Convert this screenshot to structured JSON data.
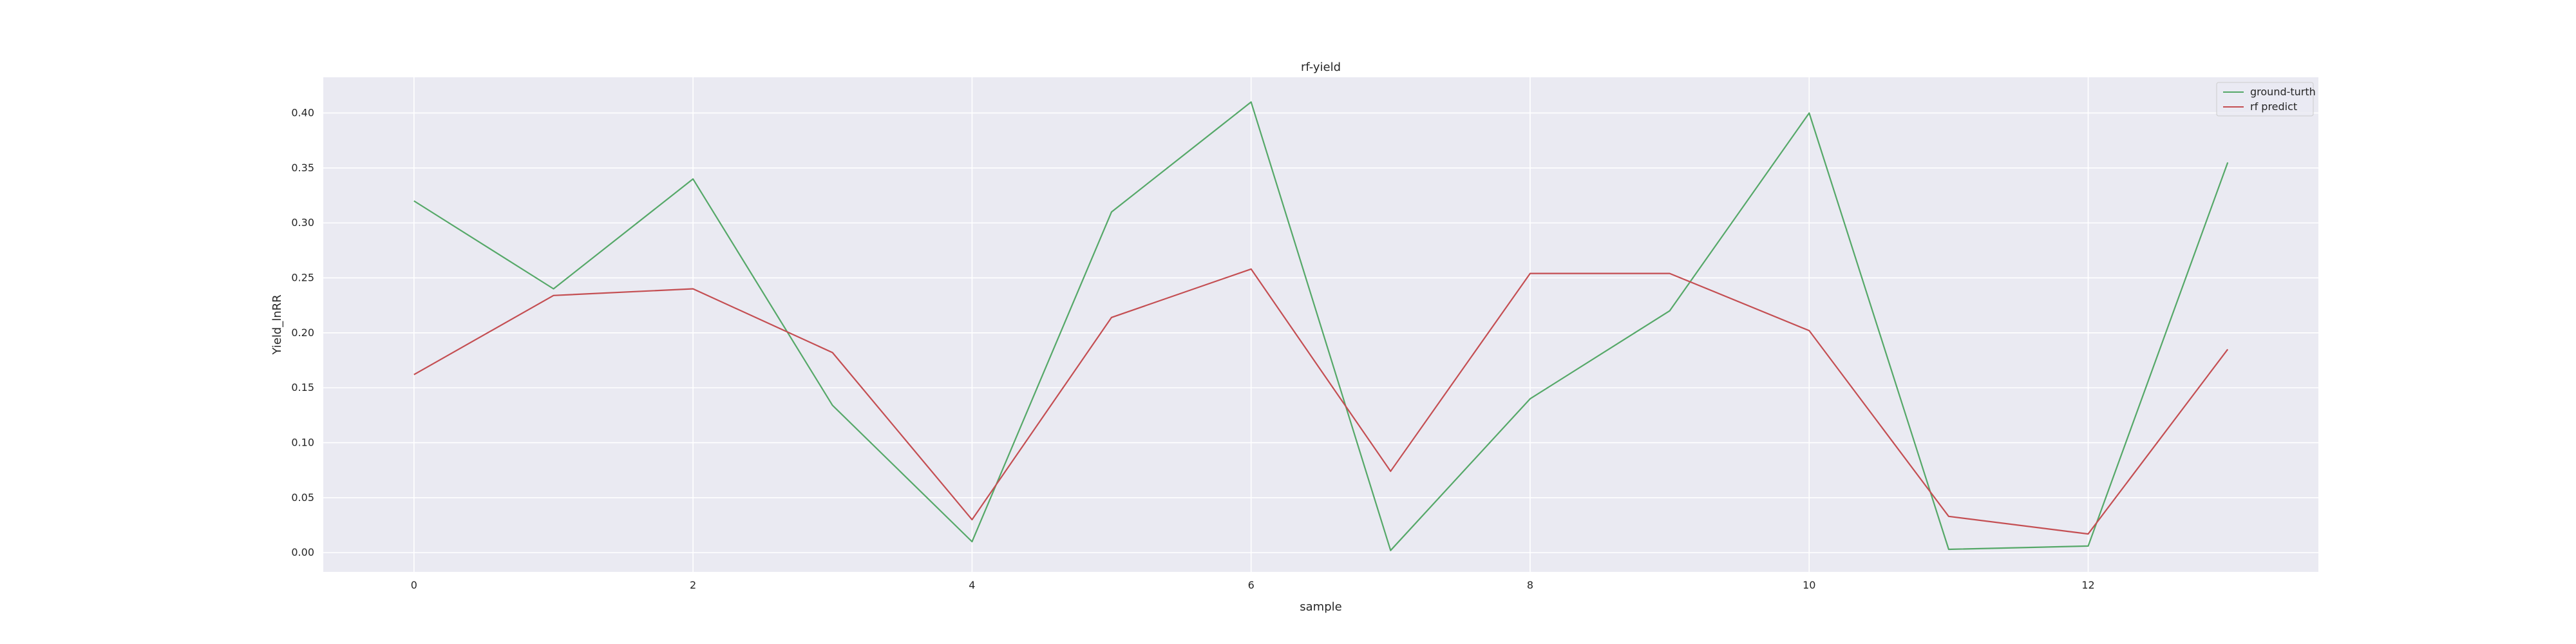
{
  "chart_data": {
    "type": "line",
    "title": "rf-yield",
    "xlabel": "sample",
    "ylabel": "Yield_lnRR",
    "x": [
      0,
      1,
      2,
      3,
      4,
      5,
      6,
      7,
      8,
      9,
      10,
      11,
      12,
      13
    ],
    "series": [
      {
        "name": "ground-turth",
        "color": "#55a868",
        "values": [
          0.32,
          0.24,
          0.34,
          0.134,
          0.01,
          0.31,
          0.41,
          0.002,
          0.14,
          0.22,
          0.4,
          0.003,
          0.006,
          0.355
        ]
      },
      {
        "name": "rf predict",
        "color": "#c44e52",
        "values": [
          0.162,
          0.234,
          0.24,
          0.182,
          0.03,
          0.214,
          0.258,
          0.074,
          0.254,
          0.254,
          0.202,
          0.033,
          0.017,
          0.185
        ]
      }
    ],
    "xlim": [
      -0.65,
      13.65
    ],
    "ylim": [
      -0.0175,
      0.4325
    ],
    "xticks": [
      0,
      2,
      4,
      6,
      8,
      10,
      12
    ],
    "yticks": [
      0.0,
      0.05,
      0.1,
      0.15,
      0.2,
      0.25,
      0.3,
      0.35,
      0.4
    ],
    "ytick_labels": [
      "0.00",
      "0.05",
      "0.10",
      "0.15",
      "0.20",
      "0.25",
      "0.30",
      "0.35",
      "0.40"
    ],
    "grid": true,
    "legend": "top-right",
    "background_color": "#eaeaf2"
  }
}
